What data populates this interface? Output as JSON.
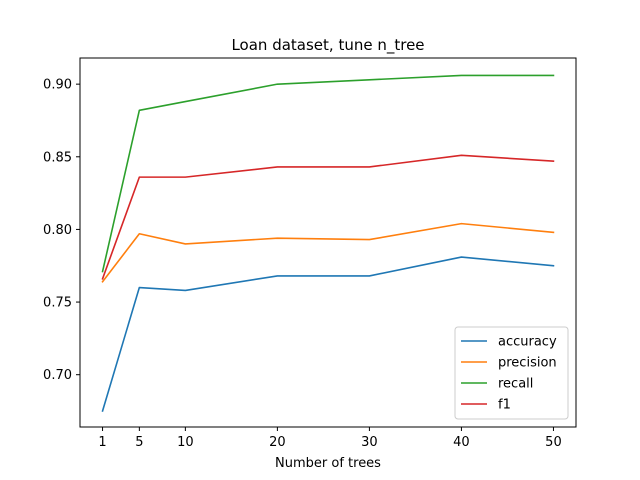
{
  "chart_data": {
    "type": "line",
    "title": "Loan dataset, tune n_tree",
    "xlabel": "Number of trees",
    "ylabel": "",
    "x": [
      1,
      5,
      10,
      20,
      30,
      40,
      50
    ],
    "xticks": [
      "1",
      "5",
      "10",
      "20",
      "30",
      "40",
      "50"
    ],
    "yticks": [
      "0.70",
      "0.75",
      "0.80",
      "0.85",
      "0.90"
    ],
    "ytick_values": [
      0.7,
      0.75,
      0.8,
      0.85,
      0.9
    ],
    "xlim": [
      -1.45,
      52.45
    ],
    "ylim": [
      0.664,
      0.918
    ],
    "grid": false,
    "legend_position": "bottom-right",
    "series": [
      {
        "name": "accuracy",
        "color": "#1f77b4",
        "values": [
          0.675,
          0.76,
          0.758,
          0.768,
          0.768,
          0.781,
          0.775
        ]
      },
      {
        "name": "precision",
        "color": "#ff7f0e",
        "values": [
          0.764,
          0.797,
          0.79,
          0.794,
          0.793,
          0.804,
          0.798
        ]
      },
      {
        "name": "recall",
        "color": "#2ca02c",
        "values": [
          0.771,
          0.882,
          0.888,
          0.9,
          0.903,
          0.906,
          0.906
        ]
      },
      {
        "name": "f1",
        "color": "#d62728",
        "values": [
          0.766,
          0.836,
          0.836,
          0.843,
          0.843,
          0.851,
          0.847
        ]
      }
    ]
  }
}
